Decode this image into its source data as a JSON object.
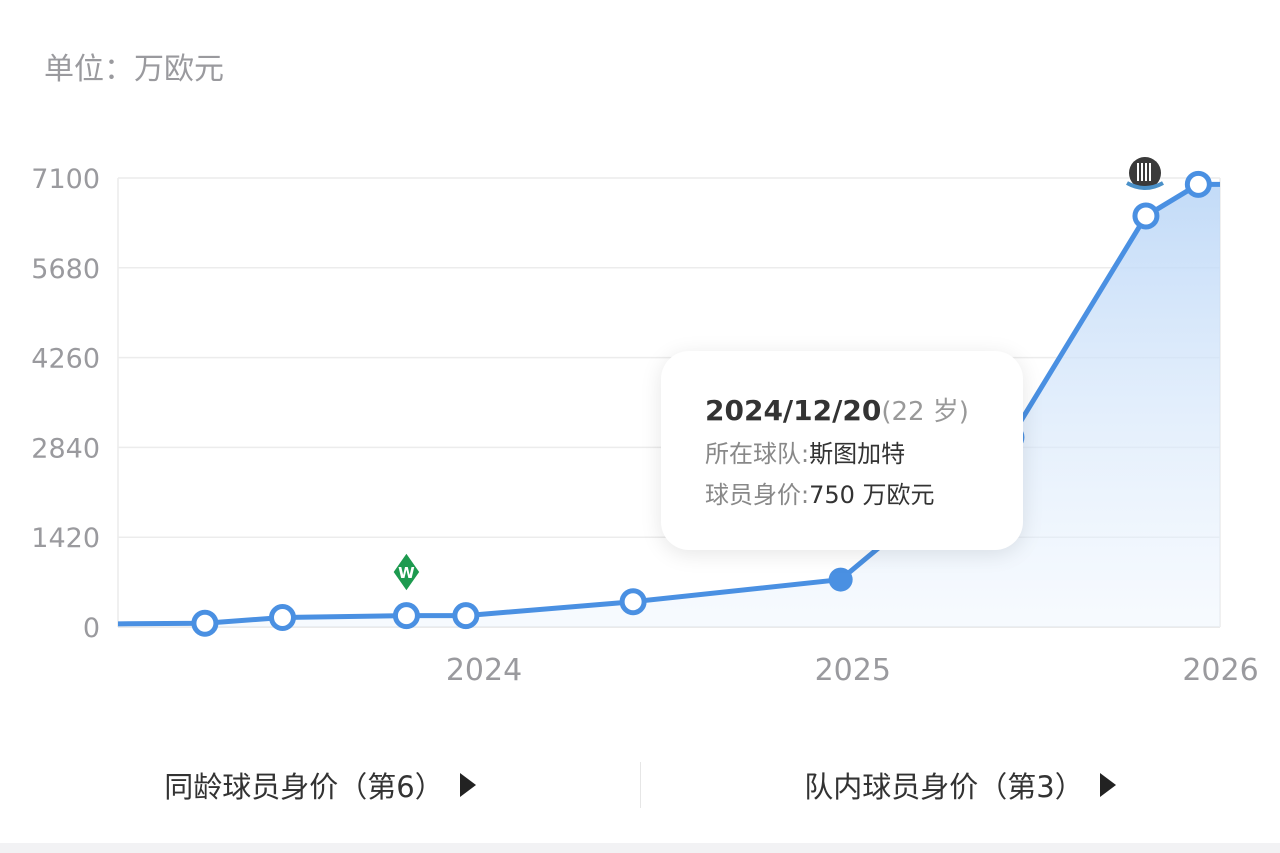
{
  "unit_label": "单位：万欧元",
  "chart_data": {
    "type": "area",
    "unit": "万欧元",
    "ylim": [
      0,
      7100
    ],
    "yticks": [
      "0",
      "1420",
      "2840",
      "4260",
      "5680",
      "7100"
    ],
    "xticks": [
      "2024",
      "2025",
      "2026"
    ],
    "grid": true,
    "series": [
      {
        "x": [
          "2022-12-15",
          "2023-03-30",
          "2023-06-15",
          "2023-10-16",
          "2023-12-14",
          "2024-05-28",
          "2024-12-20",
          "2025-06-07",
          "2025-10-19",
          "2025-12-10",
          "2026-01-01"
        ],
        "values": [
          50,
          60,
          150,
          180,
          180,
          400,
          750,
          3000,
          6500,
          7000,
          7000
        ],
        "markers": [
          false,
          true,
          true,
          true,
          true,
          true,
          true,
          true,
          true,
          true,
          false
        ]
      }
    ],
    "selected_index": 6,
    "club_logos": [
      {
        "club": "Werder Bremen",
        "date": "2023-10-16"
      },
      {
        "club": "Stuttgart",
        "date": "2024-12-20"
      },
      {
        "club": "Newcastle United",
        "date": "2025-10-19"
      }
    ],
    "line_color": "#4a90e2",
    "fill_color": "#cfe2fa"
  },
  "tooltip": {
    "date": "2024/12/20",
    "age": "(22 岁)",
    "team_label": "所在球队:",
    "team": "斯图加特",
    "value_label": "球员身价:",
    "value": "750 万欧元"
  },
  "buttons": {
    "same_age": "同龄球员身价（第6）",
    "in_team": "队内球员身价（第3）"
  }
}
